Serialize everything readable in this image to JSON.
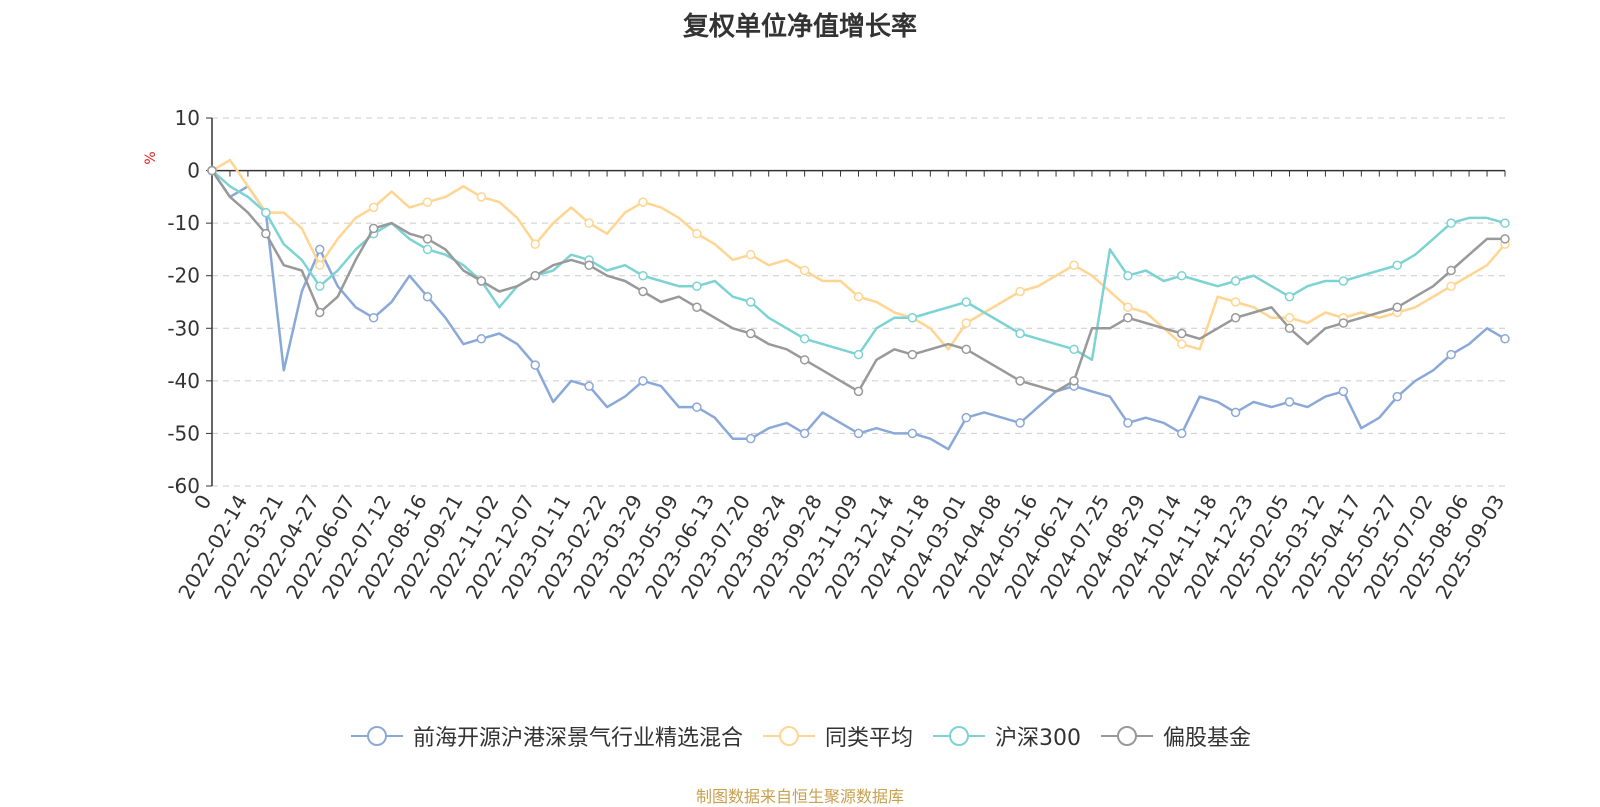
{
  "chart_data": {
    "type": "line",
    "title": "复权单位净值增长率",
    "ylabel": "%",
    "ylim": [
      -60,
      10
    ],
    "yticks": [
      10,
      0,
      -10,
      -20,
      -30,
      -40,
      -50,
      -60
    ],
    "grid": true,
    "legend_position": "bottom",
    "x_tick_labels": [
      "0",
      "2022-02-14",
      "2022-03-21",
      "2022-04-27",
      "2022-06-07",
      "2022-07-12",
      "2022-08-16",
      "2022-09-21",
      "2022-11-02",
      "2022-12-07",
      "2023-01-11",
      "2023-02-22",
      "2023-03-29",
      "2023-05-09",
      "2023-06-13",
      "2023-07-20",
      "2023-08-24",
      "2023-09-28",
      "2023-11-09",
      "2023-12-14",
      "2024-01-18",
      "2024-03-01",
      "2024-04-08",
      "2024-05-16",
      "2024-06-21",
      "2024-07-25",
      "2024-08-29",
      "2024-10-14",
      "2024-11-18",
      "2024-12-23",
      "2025-02-05",
      "2025-03-12",
      "2025-04-17",
      "2025-05-27",
      "2025-07-02",
      "2025-08-06",
      "2025-09-03"
    ],
    "series": [
      {
        "name": "前海开源沪港深景气行业精选混合",
        "color": "#8aa8d8",
        "values": [
          0,
          -5,
          -3,
          -8,
          -38,
          -23,
          -15,
          -22,
          -26,
          -28,
          -25,
          -20,
          -24,
          -28,
          -33,
          -32,
          -31,
          -33,
          -37,
          -44,
          -40,
          -41,
          -45,
          -43,
          -40,
          -41,
          -45,
          -45,
          -47,
          -51,
          -51,
          -49,
          -48,
          -50,
          -46,
          -48,
          -50,
          -49,
          -50,
          -50,
          -51,
          -53,
          -47,
          -46,
          -47,
          -48,
          -45,
          -42,
          -41,
          -42,
          -43,
          -48,
          -47,
          -48,
          -50,
          -43,
          -44,
          -46,
          -44,
          -45,
          -44,
          -45,
          -43,
          -42,
          -49,
          -47,
          -43,
          -40,
          -38,
          -35,
          -33,
          -30,
          -32
        ]
      },
      {
        "name": "同类平均",
        "color": "#ffd591",
        "values": [
          0,
          2,
          -3,
          -8,
          -8,
          -11,
          -18,
          -13,
          -9,
          -7,
          -4,
          -7,
          -6,
          -5,
          -3,
          -5,
          -6,
          -9,
          -14,
          -10,
          -7,
          -10,
          -12,
          -8,
          -6,
          -7,
          -9,
          -12,
          -14,
          -17,
          -16,
          -18,
          -17,
          -19,
          -21,
          -21,
          -24,
          -25,
          -27,
          -28,
          -30,
          -34,
          -29,
          -27,
          -25,
          -23,
          -22,
          -20,
          -18,
          -20,
          -23,
          -26,
          -27,
          -30,
          -33,
          -34,
          -24,
          -25,
          -26,
          -28,
          -28,
          -29,
          -27,
          -28,
          -27,
          -28,
          -27,
          -26,
          -24,
          -22,
          -20,
          -18,
          -14
        ]
      },
      {
        "name": "沪深300",
        "color": "#7dd3d3",
        "values": [
          0,
          -3,
          -5,
          -8,
          -14,
          -17,
          -22,
          -19,
          -15,
          -12,
          -10,
          -13,
          -15,
          -16,
          -18,
          -21,
          -26,
          -22,
          -20,
          -19,
          -16,
          -17,
          -19,
          -18,
          -20,
          -21,
          -22,
          -22,
          -21,
          -24,
          -25,
          -28,
          -30,
          -32,
          -33,
          -34,
          -35,
          -30,
          -28,
          -28,
          -27,
          -26,
          -25,
          -27,
          -29,
          -31,
          -32,
          -33,
          -34,
          -36,
          -15,
          -20,
          -19,
          -21,
          -20,
          -21,
          -22,
          -21,
          -20,
          -22,
          -24,
          -22,
          -21,
          -21,
          -20,
          -19,
          -18,
          -16,
          -13,
          -10,
          -9,
          -9,
          -10
        ]
      },
      {
        "name": "偏股基金",
        "color": "#999999",
        "values": [
          0,
          -5,
          -8,
          -12,
          -18,
          -19,
          -27,
          -24,
          -17,
          -11,
          -10,
          -12,
          -13,
          -15,
          -19,
          -21,
          -23,
          -22,
          -20,
          -18,
          -17,
          -18,
          -20,
          -21,
          -23,
          -25,
          -24,
          -26,
          -28,
          -30,
          -31,
          -33,
          -34,
          -36,
          -38,
          -40,
          -42,
          -36,
          -34,
          -35,
          -34,
          -33,
          -34,
          -36,
          -38,
          -40,
          -41,
          -42,
          -40,
          -30,
          -30,
          -28,
          -29,
          -30,
          -31,
          -32,
          -30,
          -28,
          -27,
          -26,
          -30,
          -33,
          -30,
          -29,
          -28,
          -27,
          -26,
          -24,
          -22,
          -19,
          -16,
          -13,
          -13
        ]
      }
    ]
  },
  "source": "制图数据来自恒生聚源数据库"
}
